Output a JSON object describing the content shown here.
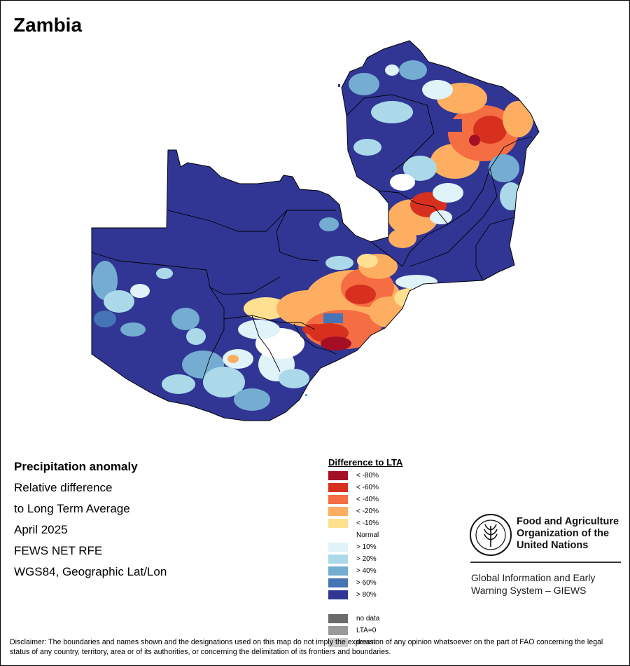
{
  "title": "Zambia",
  "info": {
    "heading": "Precipitation anomaly",
    "line1": "Relative difference",
    "line2": "to Long Term Average",
    "period": "April 2025",
    "source": "FEWS NET RFE",
    "projection": "WGS84, Geographic Lat/Lon"
  },
  "legend": {
    "title": "Difference to LTA",
    "items": [
      {
        "label": "< -80%",
        "color": "#a50f26"
      },
      {
        "label": "< -60%",
        "color": "#d7301f"
      },
      {
        "label": "< -40%",
        "color": "#f46d43"
      },
      {
        "label": "< -20%",
        "color": "#fdae61"
      },
      {
        "label": "< -10%",
        "color": "#fee090"
      },
      {
        "label": "Normal",
        "color": "#ffffff"
      },
      {
        "label": "> 10%",
        "color": "#e0f3f8"
      },
      {
        "label": "> 20%",
        "color": "#abd9e9"
      },
      {
        "label": "> 40%",
        "color": "#74add1"
      },
      {
        "label": "> 60%",
        "color": "#4575b4"
      },
      {
        "label": "> 80%",
        "color": "#313695"
      },
      {
        "label": "",
        "color": "#ffffff"
      },
      {
        "label": "no data",
        "color": "#6b6b6b"
      },
      {
        "label": "LTA=0",
        "color": "#999999"
      },
      {
        "label": "desert",
        "color": "#cccccc"
      }
    ]
  },
  "organization": {
    "name_line1": "Food and Agriculture",
    "name_line2": "Organization of the",
    "name_line3": "United Nations",
    "acronym": "FAO",
    "motto": "FIAT PANIS",
    "system_line1": "Global Information and Early",
    "system_line2": "Warning System – GIEWS"
  },
  "disclaimer": "Disclaimer: The boundaries and names shown and the designations used on this map do not imply the expression of any opinion whatsoever on the part of FAO concerning the legal status of any country, territory, area or of its authorities, or concerning the delimitation of its frontiers and boundaries."
}
